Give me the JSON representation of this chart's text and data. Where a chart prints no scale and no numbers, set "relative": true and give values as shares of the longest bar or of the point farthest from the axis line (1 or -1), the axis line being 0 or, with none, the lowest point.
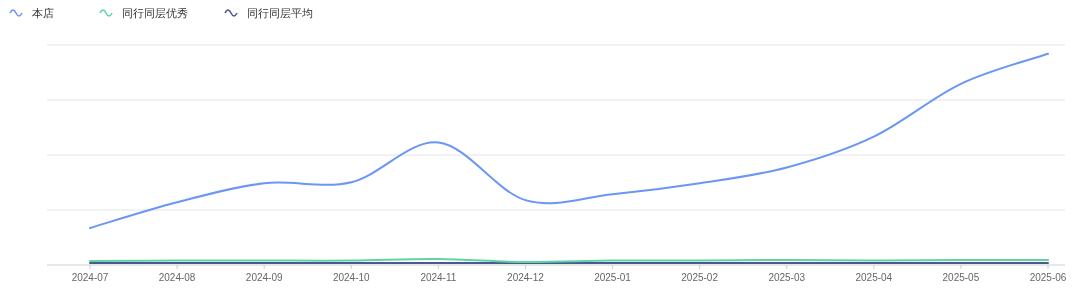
{
  "chart_data": {
    "type": "line",
    "relative": true,
    "categories": [
      "2024-07",
      "2024-08",
      "2024-09",
      "2024-10",
      "2024-11",
      "2024-12",
      "2025-01",
      "2025-02",
      "2025-03",
      "2025-04",
      "2025-05",
      "2025-06"
    ],
    "series": [
      {
        "name": "本店",
        "color": "#6b96f5",
        "values": [
          0.175,
          0.297,
          0.387,
          0.392,
          0.58,
          0.307,
          0.335,
          0.387,
          0.462,
          0.608,
          0.858,
          1
        ]
      },
      {
        "name": "同行同层优秀",
        "color": "#5fd3a8",
        "values": [
          0.019,
          0.021,
          0.021,
          0.021,
          0.028,
          0.014,
          0.021,
          0.021,
          0.024,
          0.021,
          0.024,
          0.024
        ]
      },
      {
        "name": "同行同层平均",
        "color": "#4b5a8c",
        "values": [
          0.009,
          0.009,
          0.009,
          0.009,
          0.009,
          0.009,
          0.009,
          0.009,
          0.009,
          0.009,
          0.009,
          0.009
        ]
      }
    ],
    "grid": "y",
    "legend": "top left",
    "tick_labels": "x",
    "marker": "none",
    "line_style": "solid"
  }
}
